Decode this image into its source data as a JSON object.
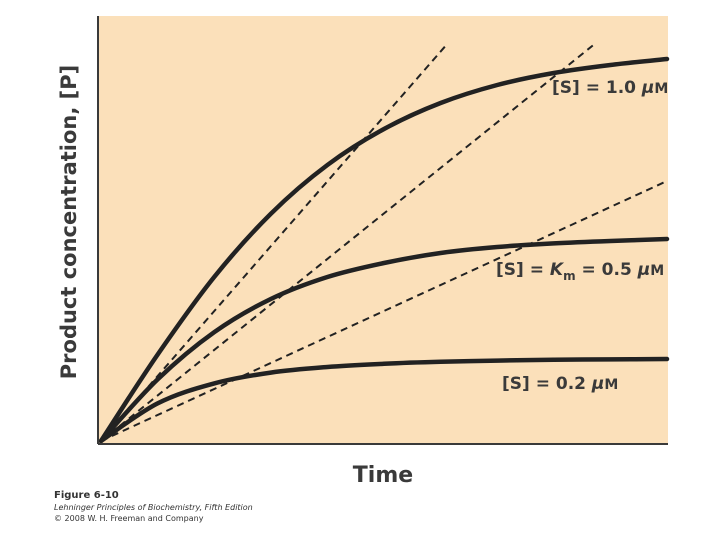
{
  "chart_data": {
    "type": "line",
    "xlabel": "Time",
    "ylabel": "Product concentration, [P]",
    "xlim": [
      0,
      10
    ],
    "ylim": [
      0,
      10
    ],
    "grid": false,
    "legend": "labels on curves",
    "colors": {
      "background": "#fbe0ba",
      "curve": "#222222",
      "axis": "#3a3a3a"
    },
    "series": [
      {
        "name": "[S] = 1.0 μM",
        "label_parts": {
          "pre": "[S] = 1.0 ",
          "unit_mu": "μ",
          "unit": "M"
        },
        "style": "solid",
        "x": [
          0,
          1,
          2,
          3,
          4,
          5,
          6,
          7,
          8,
          9,
          10
        ],
        "y": [
          0,
          2.16,
          4.1,
          5.68,
          6.9,
          7.8,
          8.45,
          8.9,
          9.2,
          9.4,
          9.55
        ]
      },
      {
        "name": "[S] = Km = 0.5 μM",
        "label_parts": {
          "pre": "[S] = ",
          "k": "K",
          "k_sub": "m",
          "post": " = 0.5 ",
          "unit_mu": "μ",
          "unit": "M"
        },
        "style": "solid",
        "x": [
          0,
          1,
          2,
          3,
          4,
          5,
          6,
          7,
          8,
          9,
          10
        ],
        "y": [
          0,
          1.54,
          2.72,
          3.55,
          4.1,
          4.45,
          4.7,
          4.85,
          4.94,
          5.0,
          5.05
        ]
      },
      {
        "name": "[S] = 0.2 μM",
        "label_parts": {
          "pre": "[S] = 0.2 ",
          "unit_mu": "μ",
          "unit": "M"
        },
        "style": "solid",
        "x": [
          0,
          1,
          2,
          3,
          4,
          5,
          6,
          7,
          8,
          9,
          10
        ],
        "y": [
          0,
          0.94,
          1.44,
          1.71,
          1.85,
          1.93,
          1.98,
          2.01,
          2.03,
          2.04,
          2.05
        ]
      },
      {
        "style": "dashed",
        "x": [
          0,
          6.1
        ],
        "y": [
          0,
          9.9
        ]
      },
      {
        "style": "dashed",
        "x": [
          0,
          8.7
        ],
        "y": [
          0,
          9.9
        ]
      },
      {
        "style": "dashed",
        "x": [
          0,
          10
        ],
        "y": [
          0,
          6.5
        ]
      }
    ]
  },
  "caption": {
    "figure": "Figure 6-10",
    "book": "Lehninger Principles of Biochemistry, Fifth Edition",
    "copyright": "© 2008 W. H. Freeman and Company"
  }
}
